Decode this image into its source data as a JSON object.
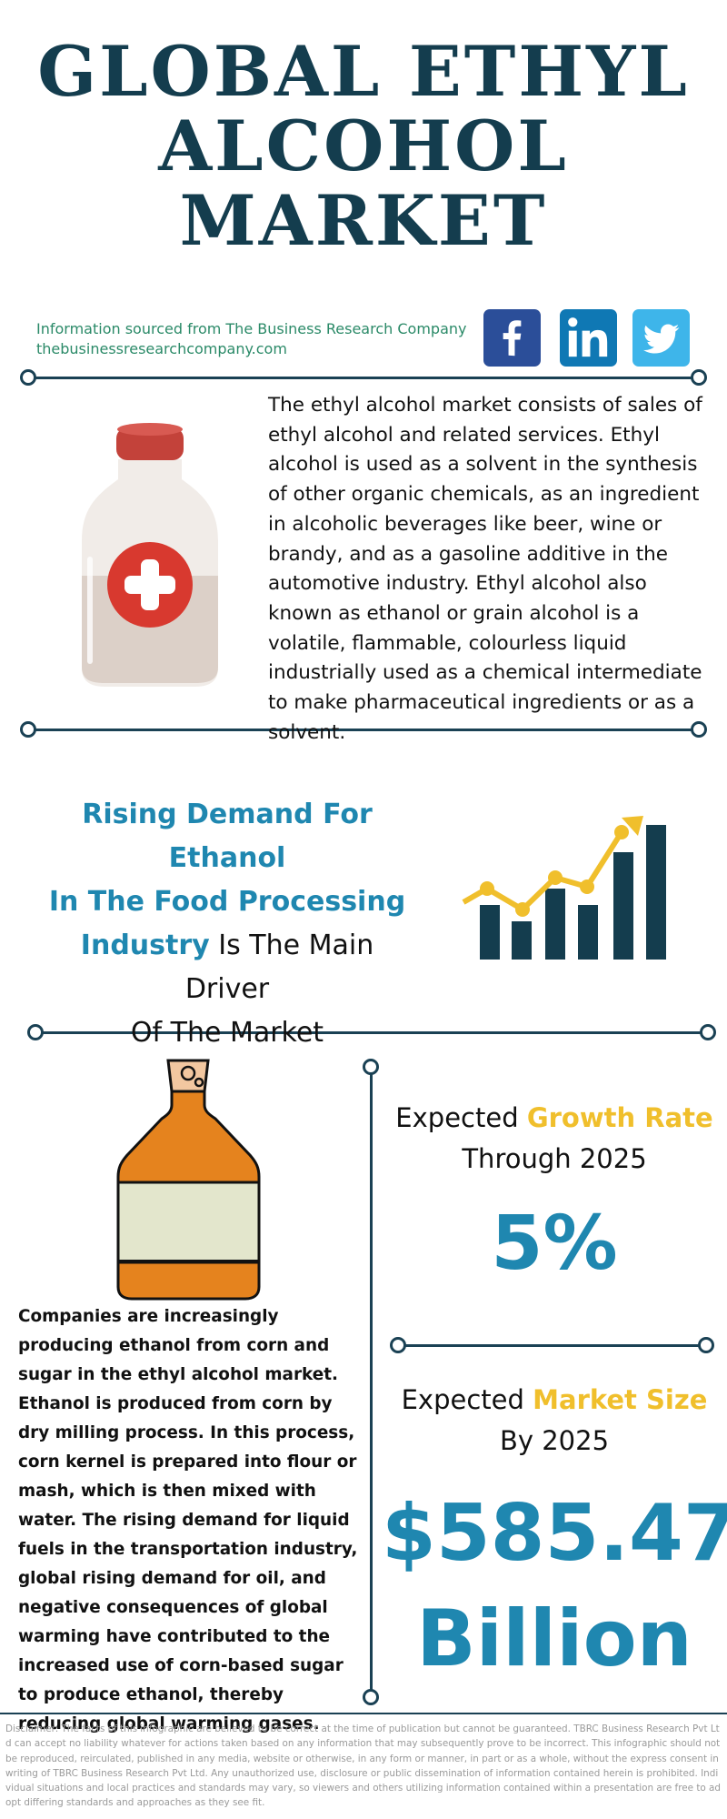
{
  "title": {
    "line1": "GLOBAL ETHYL",
    "line2": "ALCOHOL",
    "line3": "MARKET"
  },
  "source": {
    "line1": "Information sourced from The Business Research Company",
    "line2": "thebusinessresearchcompany.com"
  },
  "social": [
    {
      "name": "facebook-icon",
      "color": "#2b4e99"
    },
    {
      "name": "linkedin-icon",
      "color": "#0f78b4"
    },
    {
      "name": "twitter-icon",
      "color": "#3eb5ea"
    }
  ],
  "intro": {
    "text": "The ethyl alcohol market consists of sales of ethyl alcohol and related services. Ethyl alcohol is used as a solvent in the synthesis of other organic chemicals, as an ingredient in alcoholic beverages like beer, wine or brandy, and as a gasoline additive in the automotive industry. Ethyl alcohol also known as ethanol or grain alcohol is a volatile, flammable, colourless liquid industrially used as a chemical intermediate to make pharmaceutical ingredients or as a solvent."
  },
  "driver": {
    "hl1": "Rising Demand For Ethanol",
    "hl2": "In The Food Processing",
    "hl3": "Industry",
    "rest1": " Is The Main Driver",
    "rest2": "Of The Market"
  },
  "companies": {
    "text": "Companies are increasingly producing ethanol from corn and sugar in the ethyl alcohol market. Ethanol is produced from corn by dry milling process. In this process, corn kernel is prepared into flour or mash, which is then mixed with water.  The rising demand for liquid fuels in the transportation industry, global rising demand for oil, and negative consequences of global warming have contributed to the increased use of corn-based sugar to produce ethanol, thereby reducing global warming gases."
  },
  "growth": {
    "prefix": "Expected ",
    "highlight": "Growth Rate",
    "line2": "Through 2025",
    "value": "5%"
  },
  "size": {
    "prefix": "Expected ",
    "highlight": "Market Size",
    "line2": "By 2025",
    "value1": "$585.47",
    "value2": "Billion"
  },
  "disclaimer": "Disclaimer: The facts of this infographic are believed to be correct at the time of publication but cannot be guaranteed. TBRC Business Research Pvt Ltd can accept no liability whatever for actions taken based on any information that may subsequently prove to be incorrect. This infographic should not be reproduced, reirculated, published in any media, website or otherwise, in any form or manner, in part or as a whole, without the express consent in writing of TBRC Business Research Pvt Ltd. Any unauthorized use, disclosure or public dissemination of information contained herein is prohibited. Individual situations and local practices and standards may vary, so viewers and others utilizing information contained within a presentation are free to adopt differing standards and approaches as they see fit.",
  "colors": {
    "title": "#143d4e",
    "accent_blue": "#1f87b0",
    "accent_gold": "#f0bf2c",
    "source_green": "#2b8a68"
  }
}
